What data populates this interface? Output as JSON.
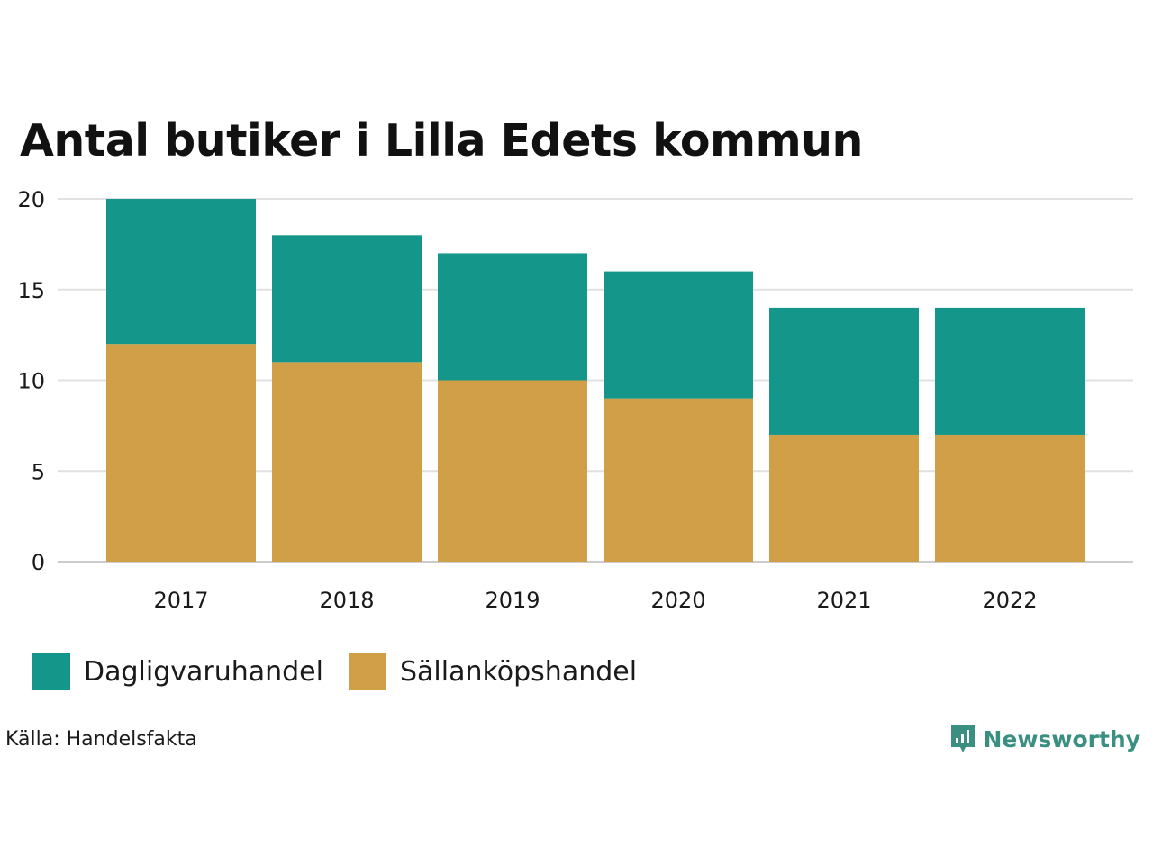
{
  "chart_data": {
    "type": "bar",
    "stacked": true,
    "title": "Antal butiker i Lilla Edets kommun",
    "xlabel": "",
    "ylabel": "",
    "categories": [
      "2017",
      "2018",
      "2019",
      "2020",
      "2021",
      "2022"
    ],
    "ylim": [
      0,
      20
    ],
    "yticks": [
      0,
      5,
      10,
      15,
      20
    ],
    "grid": true,
    "legend_position": "bottom-left",
    "series": [
      {
        "name": "Sällanköpshandel",
        "color": "#d19f48",
        "values": [
          12,
          11,
          10,
          9,
          7,
          7
        ]
      },
      {
        "name": "Dagligvaruhandel",
        "color": "#15968a",
        "values": [
          8,
          7,
          7,
          7,
          7,
          7
        ]
      }
    ]
  },
  "legend": {
    "items": [
      {
        "label": "Dagligvaruhandel",
        "color": "#15968a"
      },
      {
        "label": "Sällanköpshandel",
        "color": "#d19f48"
      }
    ]
  },
  "source": "Källa: Handelsfakta",
  "brand": {
    "name": "Newsworthy",
    "color": "#3a8f81",
    "icon": "newsworthy-logo-icon"
  }
}
